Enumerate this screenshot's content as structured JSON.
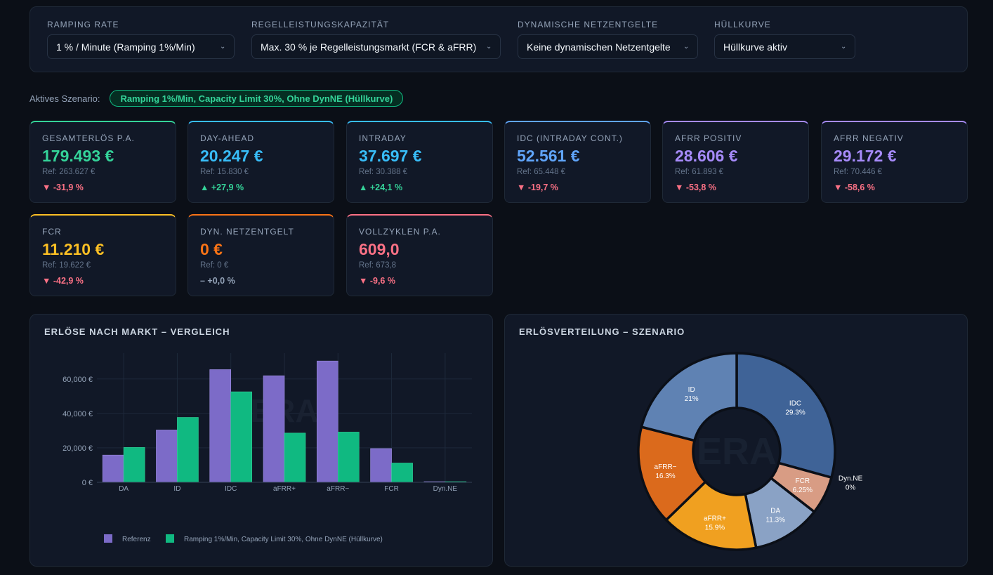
{
  "filters": [
    {
      "label": "RAMPING RATE",
      "value": "1 % / Minute (Ramping 1%/Min)"
    },
    {
      "label": "REGELLEISTUNGSKAPAZITÄT",
      "value": "Max. 30 % je Regelleistungsmarkt (FCR & aFRR)"
    },
    {
      "label": "DYNAMISCHE NETZENTGELTE",
      "value": "Keine dynamischen Netzentgelte"
    },
    {
      "label": "HÜLLKURVE",
      "value": "Hüllkurve aktiv"
    }
  ],
  "scenario": {
    "label": "Aktives Szenario:",
    "badge": "Ramping 1%/Min, Capacity Limit 30%, Ohne DynNE (Hüllkurve)"
  },
  "kpis": [
    {
      "title": "GESAMTERLÖS P.A.",
      "value": "179.493 €",
      "ref": "Ref: 263.627 €",
      "delta": "▼ -31,9 %",
      "trend": "neg",
      "color": "#34d399"
    },
    {
      "title": "DAY-AHEAD",
      "value": "20.247 €",
      "ref": "Ref: 15.830 €",
      "delta": "▲ +27,9 %",
      "trend": "pos",
      "color": "#38bdf8"
    },
    {
      "title": "INTRADAY",
      "value": "37.697 €",
      "ref": "Ref: 30.388 €",
      "delta": "▲ +24,1 %",
      "trend": "pos",
      "color": "#38bdf8"
    },
    {
      "title": "IDC (INTRADAY CONT.)",
      "value": "52.561 €",
      "ref": "Ref: 65.448 €",
      "delta": "▼ -19,7 %",
      "trend": "neg",
      "color": "#60a5fa"
    },
    {
      "title": "AFRR POSITIV",
      "value": "28.606 €",
      "ref": "Ref: 61.893 €",
      "delta": "▼ -53,8 %",
      "trend": "neg",
      "color": "#a78bfa"
    },
    {
      "title": "AFRR NEGATIV",
      "value": "29.172 €",
      "ref": "Ref: 70.446 €",
      "delta": "▼ -58,6 %",
      "trend": "neg",
      "color": "#a78bfa"
    },
    {
      "title": "FCR",
      "value": "11.210 €",
      "ref": "Ref: 19.622 €",
      "delta": "▼ -42,9 %",
      "trend": "neg",
      "color": "#fbbf24"
    },
    {
      "title": "DYN. NETZENTGELT",
      "value": "0 €",
      "ref": "Ref: 0 €",
      "delta": "– +0,0 %",
      "trend": "neu",
      "color": "#f97316"
    },
    {
      "title": "VOLLZYKLEN P.A.",
      "value": "609,0",
      "ref": "Ref: 673,8",
      "delta": "▼ -9,6 %",
      "trend": "neg",
      "color": "#fb7185"
    }
  ],
  "bar_chart": {
    "title": "ERLÖSE NACH MARKT – VERGLEICH"
  },
  "pie_chart": {
    "title": "ERLÖSVERTEILUNG – SZENARIO",
    "watermark": "ERA"
  },
  "chart_data": [
    {
      "type": "bar",
      "title": "ERLÖSE NACH MARKT – VERGLEICH",
      "categories": [
        "DA",
        "ID",
        "IDC",
        "aFRR+",
        "aFRR−",
        "FCR",
        "Dyn.NE"
      ],
      "series": [
        {
          "name": "Referenz",
          "color": "#7c6bc8",
          "values": [
            15830,
            30388,
            65448,
            61893,
            70446,
            19622,
            0
          ]
        },
        {
          "name": "Ramping 1%/Min, Capacity Limit 30%, Ohne DynNE (Hüllkurve)",
          "color": "#10b981",
          "values": [
            20247,
            37697,
            52561,
            28606,
            29172,
            11210,
            0
          ]
        }
      ],
      "yticks": [
        0,
        20000,
        40000,
        60000
      ],
      "ytick_labels": [
        "0 €",
        "20,000 €",
        "40,000 €",
        "60,000 €"
      ],
      "ylim": [
        0,
        75000
      ],
      "legend": "bottom"
    },
    {
      "type": "pie",
      "title": "ERLÖSVERTEILUNG – SZENARIO",
      "slices": [
        {
          "label": "IDC",
          "pct": 29.3,
          "pct_label": "29.3%",
          "color": "#3f6397"
        },
        {
          "label": "Dyn.NE",
          "pct": 0,
          "pct_label": "0%",
          "color": "#1f2937"
        },
        {
          "label": "FCR",
          "pct": 6.25,
          "pct_label": "6.25%",
          "color": "#d89c84"
        },
        {
          "label": "DA",
          "pct": 11.3,
          "pct_label": "11.3%",
          "color": "#8aa2c5"
        },
        {
          "label": "aFRR+",
          "pct": 15.9,
          "pct_label": "15.9%",
          "color": "#f0a020"
        },
        {
          "label": "aFRR−",
          "pct": 16.3,
          "pct_label": "16.3%",
          "color": "#db6a1c"
        },
        {
          "label": "ID",
          "pct": 21,
          "pct_label": "21%",
          "color": "#5f82b3"
        }
      ]
    }
  ]
}
